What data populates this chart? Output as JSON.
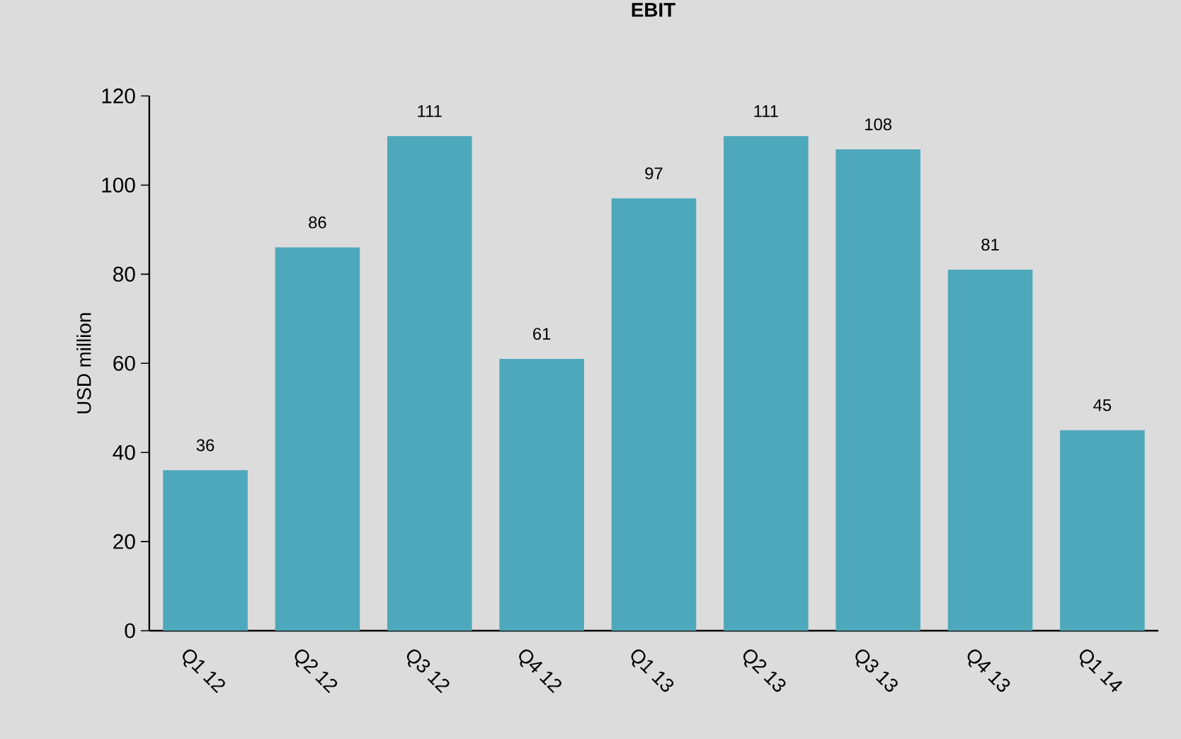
{
  "chart_data": {
    "type": "bar",
    "title": "EBIT",
    "ylabel": "USD million",
    "categories": [
      "Q1 12",
      "Q2 12",
      "Q3 12",
      "Q4 12",
      "Q1 13",
      "Q2 13",
      "Q3 13",
      "Q4 13",
      "Q1 14"
    ],
    "values": [
      36,
      86,
      111,
      61,
      97,
      111,
      108,
      81,
      45
    ],
    "color": "#4ea8bb",
    "ylim": [
      0,
      120
    ],
    "yticks": [
      0,
      20,
      40,
      60,
      80,
      100,
      120
    ],
    "data_labels": true
  }
}
